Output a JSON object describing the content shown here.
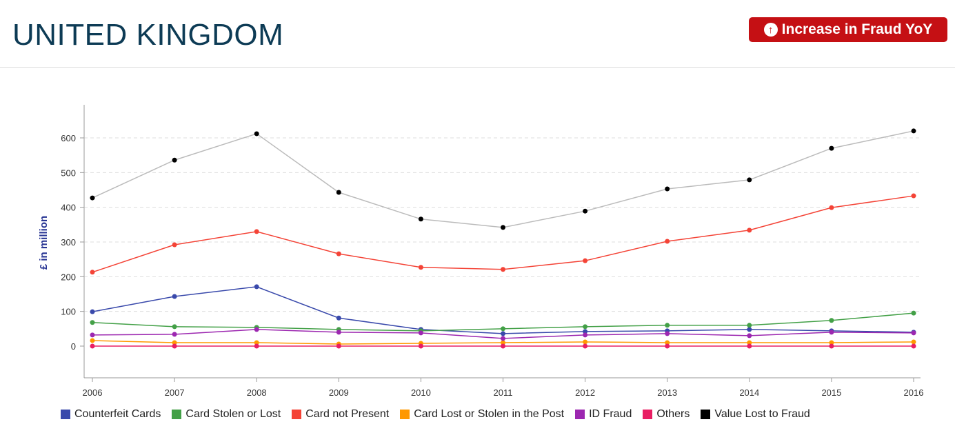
{
  "header": {
    "title": "UNITED KINGDOM",
    "badge_label": "Increase in Fraud YoY",
    "badge_icon": "arrow-up-circle-icon",
    "badge_color": "#c51014"
  },
  "chart_data": {
    "type": "line",
    "ylabel": "£ in million",
    "xlabel": "",
    "ylim": [
      -90,
      700
    ],
    "yticks": [
      0,
      100,
      200,
      300,
      400,
      500,
      600
    ],
    "grid": true,
    "legend_position": "bottom",
    "x": [
      "2006",
      "2007",
      "2008",
      "2009",
      "2010",
      "2011",
      "2012",
      "2013",
      "2014",
      "2015",
      "2016"
    ],
    "series": [
      {
        "name": "Counterfeit Cards",
        "color": "#3949ab",
        "values": [
          99,
          143,
          171,
          81,
          48,
          36,
          42,
          44,
          48,
          44,
          40
        ]
      },
      {
        "name": "Card Stolen or Lost",
        "color": "#43a047",
        "values": [
          68,
          56,
          54,
          48,
          44,
          50,
          56,
          60,
          60,
          74,
          95
        ]
      },
      {
        "name": "Card not Present",
        "color": "#f44336",
        "values": [
          213,
          292,
          330,
          266,
          227,
          221,
          246,
          302,
          334,
          399,
          433
        ]
      },
      {
        "name": "Card Lost or Stolen in the Post",
        "color": "#ff9800",
        "values": [
          16,
          10,
          10,
          6,
          8,
          10,
          12,
          10,
          10,
          10,
          12
        ]
      },
      {
        "name": "ID Fraud",
        "color": "#9c27b0",
        "values": [
          32,
          34,
          48,
          40,
          38,
          22,
          32,
          36,
          30,
          40,
          38
        ]
      },
      {
        "name": "Others",
        "color": "#e91e63",
        "values": [
          0,
          0,
          0,
          0,
          0,
          0,
          0,
          0,
          0,
          0,
          0
        ]
      },
      {
        "name": "Value Lost to Fraud",
        "color": "#000000",
        "line_color": "#bbbbbb",
        "values": [
          427,
          536,
          612,
          443,
          366,
          342,
          389,
          453,
          479,
          570,
          620
        ]
      }
    ]
  }
}
